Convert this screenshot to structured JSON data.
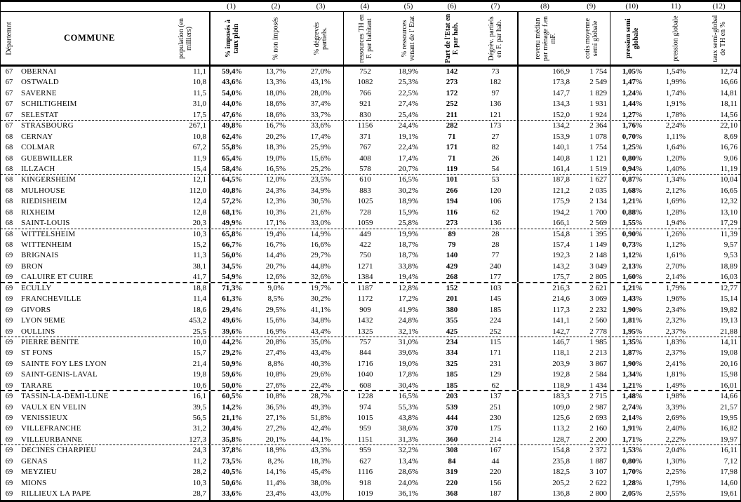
{
  "document": {
    "colors": {
      "ink": "#000000",
      "paper": "#ffffff"
    },
    "corner": {
      "dept": "Départemnt",
      "commune": "COMMUNE",
      "population": "population (en milliers)"
    },
    "columns": [
      {
        "num": "(1)",
        "label": "% imposés à taux plein",
        "bold": true
      },
      {
        "num": "(2)",
        "label": "% non imposés",
        "bold": false
      },
      {
        "num": "(3)",
        "label": "% dégrevés partiels.",
        "bold": false
      },
      {
        "num": "(4)",
        "label": "ressources TH en F. par habitant",
        "bold": false
      },
      {
        "num": "(5)",
        "label": "% ressources venant de l' Etat",
        "bold": false
      },
      {
        "num": "(6)",
        "label": "Part de l'Etat en F. par hab.",
        "bold": true
      },
      {
        "num": "(7)",
        "label": "Dégrèv. partiels en F. par hab.",
        "bold": false
      },
      {
        "num": "(8)",
        "label": "revenu médian par ménage f.en mF.",
        "bold": false
      },
      {
        "num": "(9)",
        "label": "cotis moyenne semi globale",
        "bold": false
      },
      {
        "num": "(10)",
        "label": "pression semi globale",
        "bold": true
      },
      {
        "num": "11)",
        "label": "pression globale",
        "bold": false
      },
      {
        "num": "(12)",
        "label": "taux semi-global de TH en %",
        "bold": false
      }
    ],
    "rows": [
      [
        "67",
        "OBERNAI",
        "11,1",
        "59,4%",
        "13,7%",
        "27,0%",
        "752",
        "18,9%",
        "142",
        "73",
        "166,9",
        "1 754",
        "1,05%",
        "1,54%",
        "12,74"
      ],
      [
        "67",
        "OSTWALD",
        "10,8",
        "43,6%",
        "13,3%",
        "43,1%",
        "1082",
        "25,3%",
        "273",
        "182",
        "173,8",
        "2 549",
        "1,47%",
        "1,99%",
        "16,66"
      ],
      [
        "67",
        "SAVERNE",
        "11,5",
        "54,0%",
        "18,0%",
        "28,0%",
        "766",
        "22,5%",
        "172",
        "97",
        "147,7",
        "1 829",
        "1,24%",
        "1,74%",
        "14,81"
      ],
      [
        "67",
        "SCHILTIGHEIM",
        "31,0",
        "44,0%",
        "18,6%",
        "37,4%",
        "921",
        "27,4%",
        "252",
        "136",
        "134,3",
        "1 931",
        "1,44%",
        "1,91%",
        "18,11"
      ],
      [
        "67",
        "SELESTAT",
        "17,5",
        "47,6%",
        "18,6%",
        "33,7%",
        "830",
        "25,4%",
        "211",
        "121",
        "152,0",
        "1 924",
        "1,27%",
        "1,78%",
        "14,56"
      ],
      [
        "67",
        "STRASBOURG",
        "267,1",
        "49,8%",
        "16,7%",
        "33,6%",
        "1156",
        "24,4%",
        "282",
        "173",
        "134,2",
        "2 364",
        "1,76%",
        "2,24%",
        "22,10"
      ],
      [
        "68",
        "CERNAY",
        "10,8",
        "62,4%",
        "20,2%",
        "17,4%",
        "371",
        "19,1%",
        "71",
        "27",
        "153,9",
        "1 078",
        "0,70%",
        "1,11%",
        "8,69"
      ],
      [
        "68",
        "COLMAR",
        "67,2",
        "55,8%",
        "18,3%",
        "25,9%",
        "767",
        "22,4%",
        "171",
        "82",
        "140,1",
        "1 754",
        "1,25%",
        "1,64%",
        "16,76"
      ],
      [
        "68",
        "GUEBWILLER",
        "11,9",
        "65,4%",
        "19,0%",
        "15,6%",
        "408",
        "17,4%",
        "71",
        "26",
        "140,8",
        "1 121",
        "0,80%",
        "1,20%",
        "9,06"
      ],
      [
        "68",
        "ILLZACH",
        "15,4",
        "58,4%",
        "16,5%",
        "25,2%",
        "578",
        "20,7%",
        "119",
        "54",
        "161,4",
        "1 519",
        "0,94%",
        "1,40%",
        "11,19"
      ],
      [
        "68",
        "KINGERSHEIM",
        "12,1",
        "64,5%",
        "12,0%",
        "23,5%",
        "610",
        "16,5%",
        "101",
        "53",
        "187,8",
        "1 627",
        "0,87%",
        "1,34%",
        "10,04"
      ],
      [
        "68",
        "MULHOUSE",
        "112,0",
        "40,8%",
        "24,3%",
        "34,9%",
        "883",
        "30,2%",
        "266",
        "120",
        "121,2",
        "2 035",
        "1,68%",
        "2,12%",
        "16,65"
      ],
      [
        "68",
        "RIEDISHEIM",
        "12,4",
        "57,2%",
        "12,3%",
        "30,5%",
        "1025",
        "18,9%",
        "194",
        "106",
        "175,9",
        "2 134",
        "1,21%",
        "1,69%",
        "12,32"
      ],
      [
        "68",
        "RIXHEIM",
        "12,8",
        "68,1%",
        "10,3%",
        "21,6%",
        "728",
        "15,9%",
        "116",
        "62",
        "194,2",
        "1 700",
        "0,88%",
        "1,28%",
        "13,10"
      ],
      [
        "68",
        "SAINT-LOUIS",
        "20,3",
        "49,9%",
        "17,1%",
        "33,0%",
        "1059",
        "25,8%",
        "273",
        "136",
        "166,1",
        "2 569",
        "1,55%",
        "1,94%",
        "17,29"
      ],
      [
        "68",
        "WITTELSHEIM",
        "10,3",
        "65,8%",
        "19,4%",
        "14,9%",
        "449",
        "19,9%",
        "89",
        "28",
        "154,8",
        "1 395",
        "0,90%",
        "1,26%",
        "11,39"
      ],
      [
        "68",
        "WITTENHEIM",
        "15,2",
        "66,7%",
        "16,7%",
        "16,6%",
        "422",
        "18,7%",
        "79",
        "28",
        "157,4",
        "1 149",
        "0,73%",
        "1,12%",
        "9,57"
      ],
      [
        "69",
        "BRIGNAIS",
        "11,3",
        "56,0%",
        "14,4%",
        "29,7%",
        "750",
        "18,7%",
        "140",
        "77",
        "192,3",
        "2 148",
        "1,12%",
        "1,61%",
        "9,53"
      ],
      [
        "69",
        "BRON",
        "38,1",
        "34,5%",
        "20,7%",
        "44,8%",
        "1271",
        "33,8%",
        "429",
        "240",
        "143,2",
        "3 049",
        "2,13%",
        "2,70%",
        "18,89"
      ],
      [
        "69",
        "CALUIRE ET CUIRE",
        "41,7",
        "54,9%",
        "12,6%",
        "32,6%",
        "1384",
        "19,4%",
        "268",
        "177",
        "175,7",
        "2 805",
        "1,60%",
        "2,14%",
        "16,03"
      ],
      [
        "69",
        "ECULLY",
        "18,8",
        "71,3%",
        "9,0%",
        "19,7%",
        "1187",
        "12,8%",
        "152",
        "103",
        "216,3",
        "2 621",
        "1,21%",
        "1,79%",
        "12,77"
      ],
      [
        "69",
        "FRANCHEVILLE",
        "11,4",
        "61,3%",
        "8,5%",
        "30,2%",
        "1172",
        "17,2%",
        "201",
        "145",
        "214,6",
        "3 069",
        "1,43%",
        "1,96%",
        "15,14"
      ],
      [
        "69",
        "GIVORS",
        "18,6",
        "29,4%",
        "29,5%",
        "41,1%",
        "909",
        "41,9%",
        "380",
        "185",
        "117,3",
        "2 232",
        "1,90%",
        "2,34%",
        "19,82"
      ],
      [
        "69",
        "LYON 9EME",
        "453,2",
        "49,6%",
        "15,6%",
        "34,8%",
        "1432",
        "24,8%",
        "355",
        "224",
        "141,1",
        "2 560",
        "1,81%",
        "2,32%",
        "19,13"
      ],
      [
        "69",
        "OULLINS",
        "25,5",
        "39,6%",
        "16,9%",
        "43,4%",
        "1325",
        "32,1%",
        "425",
        "252",
        "142,7",
        "2 778",
        "1,95%",
        "2,37%",
        "21,88"
      ],
      [
        "69",
        "PIERRE BENITE",
        "10,0",
        "44,2%",
        "20,8%",
        "35,0%",
        "757",
        "31,0%",
        "234",
        "115",
        "146,7",
        "1 985",
        "1,35%",
        "1,83%",
        "14,11"
      ],
      [
        "69",
        "ST FONS",
        "15,7",
        "29,2%",
        "27,4%",
        "43,4%",
        "844",
        "39,6%",
        "334",
        "171",
        "118,1",
        "2 213",
        "1,87%",
        "2,37%",
        "19,08"
      ],
      [
        "69",
        "SAINTE FOY LES LYON",
        "21,4",
        "50,9%",
        "8,8%",
        "40,3%",
        "1716",
        "19,0%",
        "325",
        "231",
        "203,9",
        "3 867",
        "1,90%",
        "2,41%",
        "20,16"
      ],
      [
        "69",
        "SAINT-GENIS-LAVAL",
        "19,8",
        "59,6%",
        "10,8%",
        "29,6%",
        "1040",
        "17,8%",
        "185",
        "129",
        "192,8",
        "2 584",
        "1,34%",
        "1,81%",
        "15,98"
      ],
      [
        "69",
        "TARARE",
        "10,6",
        "50,0%",
        "27,6%",
        "22,4%",
        "608",
        "30,4%",
        "185",
        "62",
        "118,9",
        "1 434",
        "1,21%",
        "1,49%",
        "16,01"
      ],
      [
        "69",
        "TASSIN-LA-DEMI-LUNE",
        "16,1",
        "60,5%",
        "10,8%",
        "28,7%",
        "1228",
        "16,5%",
        "203",
        "137",
        "183,3",
        "2 715",
        "1,48%",
        "1,98%",
        "14,66"
      ],
      [
        "69",
        "VAULX EN VELIN",
        "39,5",
        "14,2%",
        "36,5%",
        "49,3%",
        "974",
        "55,3%",
        "539",
        "251",
        "109,0",
        "2 987",
        "2,74%",
        "3,39%",
        "21,57"
      ],
      [
        "69",
        "VENISSIEUX",
        "56,5",
        "21,1%",
        "27,1%",
        "51,8%",
        "1015",
        "43,8%",
        "444",
        "230",
        "125,6",
        "2 693",
        "2,14%",
        "2,69%",
        "19,95"
      ],
      [
        "69",
        "VILLEFRANCHE",
        "31,2",
        "30,4%",
        "27,2%",
        "42,4%",
        "959",
        "38,6%",
        "370",
        "175",
        "113,2",
        "2 160",
        "1,91%",
        "2,40%",
        "16,82"
      ],
      [
        "69",
        "VILLEURBANNE",
        "127,3",
        "35,8%",
        "20,1%",
        "44,1%",
        "1151",
        "31,3%",
        "360",
        "214",
        "128,7",
        "2 200",
        "1,71%",
        "2,22%",
        "19,97"
      ],
      [
        "69",
        "DECINES CHARPIEU",
        "24,3",
        "37,8%",
        "18,9%",
        "43,3%",
        "959",
        "32,2%",
        "308",
        "167",
        "154,8",
        "2 372",
        "1,53%",
        "2,04%",
        "16,11"
      ],
      [
        "69",
        "GENAS",
        "11,2",
        "73,5%",
        "8,2%",
        "18,3%",
        "627",
        "13,4%",
        "84",
        "44",
        "235,8",
        "1 887",
        "0,80%",
        "1,30%",
        "7,12"
      ],
      [
        "69",
        "MEYZIEU",
        "28,2",
        "40,5%",
        "14,1%",
        "45,4%",
        "1116",
        "28,6%",
        "319",
        "220",
        "182,5",
        "3 107",
        "1,70%",
        "2,25%",
        "17,98"
      ],
      [
        "69",
        "MIONS",
        "10,3",
        "50,6%",
        "11,4%",
        "38,0%",
        "918",
        "24,0%",
        "220",
        "156",
        "205,2",
        "2 622",
        "1,28%",
        "1,79%",
        "14,60"
      ],
      [
        "69",
        "RILLIEUX LA PAPE",
        "28,7",
        "33,6%",
        "23,4%",
        "43,0%",
        "1019",
        "36,1%",
        "368",
        "187",
        "136,8",
        "2 800",
        "2,05%",
        "2,55%",
        "19,61"
      ]
    ],
    "separators": {
      "light_after": [
        4,
        9,
        14,
        24,
        34
      ],
      "heavy_after": [
        19,
        29
      ]
    }
  }
}
